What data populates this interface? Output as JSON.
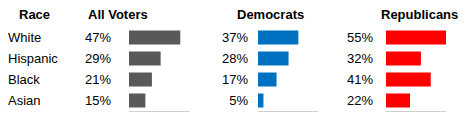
{
  "chart_data": [
    {
      "type": "bar",
      "title": "All Voters",
      "ylabel": "Race",
      "categories": [
        "White",
        "Hispanic",
        "Black",
        "Asian"
      ],
      "values": [
        47,
        29,
        21,
        15
      ],
      "value_labels": [
        "47%",
        "29%",
        "21%",
        "15%"
      ],
      "color": "#595959",
      "orientation": "horizontal",
      "data_labels": true,
      "xlim": [
        0,
        55
      ],
      "xticks": [],
      "grid": false,
      "tick_labels": "y"
    },
    {
      "type": "bar",
      "title": "Democrats",
      "categories": [
        "White",
        "Hispanic",
        "Black",
        "Asian"
      ],
      "values": [
        37,
        28,
        17,
        5
      ],
      "value_labels": [
        "37%",
        "28%",
        "17%",
        "5%"
      ],
      "color": "#0070c0",
      "orientation": "horizontal",
      "data_labels": true,
      "xlim": [
        0,
        55
      ],
      "xticks": [],
      "grid": false,
      "tick_labels": false
    },
    {
      "type": "bar",
      "title": "Republicans",
      "categories": [
        "White",
        "Hispanic",
        "Black",
        "Asian"
      ],
      "values": [
        55,
        32,
        41,
        22
      ],
      "value_labels": [
        "55%",
        "32%",
        "41%",
        "22%"
      ],
      "color": "#ff0000",
      "orientation": "horizontal",
      "data_labels": true,
      "xlim": [
        0,
        55
      ],
      "xticks": [],
      "grid": false,
      "tick_labels": false
    }
  ]
}
